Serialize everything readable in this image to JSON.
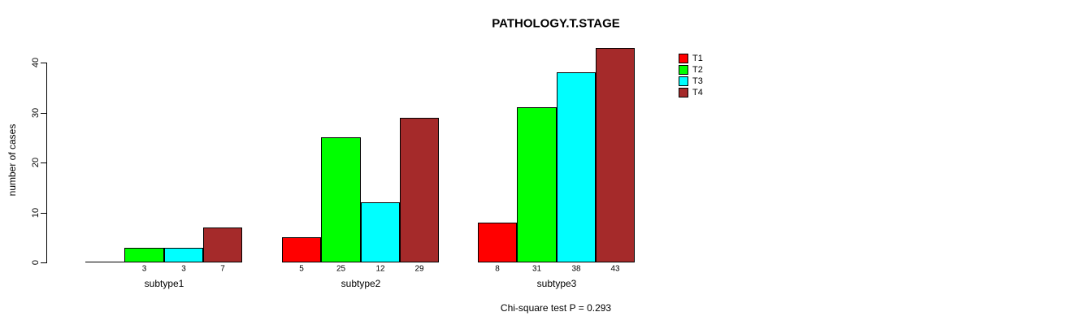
{
  "chart_data": {
    "type": "bar",
    "grouped": true,
    "title": "PATHOLOGY.T.STAGE",
    "ylabel": "number of cases",
    "xlabel": "",
    "categories": [
      "subtype1",
      "subtype2",
      "subtype3"
    ],
    "series": [
      {
        "name": "T1",
        "color": "#FF0000",
        "values": [
          0,
          5,
          8
        ]
      },
      {
        "name": "T2",
        "color": "#00FF00",
        "values": [
          3,
          25,
          31
        ]
      },
      {
        "name": "T3",
        "color": "#00FFFF",
        "values": [
          3,
          12,
          38
        ]
      },
      {
        "name": "T4",
        "color": "#A52A2A",
        "values": [
          7,
          29,
          43
        ]
      }
    ],
    "bar_value_labels": [
      [
        null,
        "3",
        "3",
        "7"
      ],
      [
        "5",
        "25",
        "12",
        "29"
      ],
      [
        "8",
        "31",
        "38",
        "43"
      ]
    ],
    "ylim": [
      0,
      40
    ],
    "yticks": [
      0,
      10,
      20,
      30,
      40
    ],
    "grid": false,
    "legend_position": "right",
    "legend_entries": [
      "T1",
      "T2",
      "T3",
      "T4"
    ],
    "annotation": "Chi-square test P = 0.293",
    "colors": {
      "background": "#FFFFFF",
      "axis": "#000000",
      "text": "#000000"
    }
  }
}
